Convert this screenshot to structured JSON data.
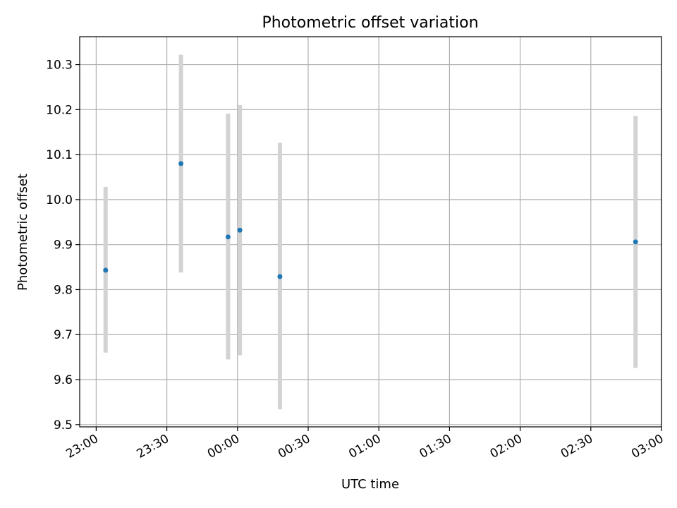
{
  "chart_data": {
    "type": "scatter",
    "title": "Photometric offset variation",
    "xlabel": "UTC time",
    "ylabel": "Photometric offset",
    "x_unit": "time of day (UTC), spanning midnight",
    "xlim": [
      "22:53",
      "03:00"
    ],
    "ylim": [
      9.495,
      10.362
    ],
    "x_ticks": [
      "23:00",
      "23:30",
      "00:00",
      "00:30",
      "01:00",
      "01:30",
      "02:00",
      "02:30",
      "03:00"
    ],
    "y_ticks": [
      9.5,
      9.6,
      9.7,
      9.8,
      9.9,
      10.0,
      10.1,
      10.2,
      10.3
    ],
    "y_tick_labels": [
      "9.5",
      "9.6",
      "9.7",
      "9.8",
      "9.9",
      "10.0",
      "10.1",
      "10.2",
      "10.3"
    ],
    "grid": true,
    "legend": "none",
    "series": [
      {
        "points": [
          {
            "x": "23:04",
            "y": 9.843,
            "err_low": 9.66,
            "err_high": 10.028
          },
          {
            "x": "23:36",
            "y": 10.08,
            "err_low": 9.838,
            "err_high": 10.322
          },
          {
            "x": "23:56",
            "y": 9.917,
            "err_low": 9.645,
            "err_high": 10.191
          },
          {
            "x": "00:01",
            "y": 9.932,
            "err_low": 9.654,
            "err_high": 10.21
          },
          {
            "x": "00:18",
            "y": 9.829,
            "err_low": 9.534,
            "err_high": 10.126
          },
          {
            "x": "02:49",
            "y": 9.906,
            "err_low": 9.626,
            "err_high": 10.186
          }
        ]
      }
    ],
    "colors": {
      "marker": "#1f77b4",
      "errorbar": "#d3d3d3",
      "grid": "#b0b0b0",
      "axes": "#000000"
    }
  }
}
